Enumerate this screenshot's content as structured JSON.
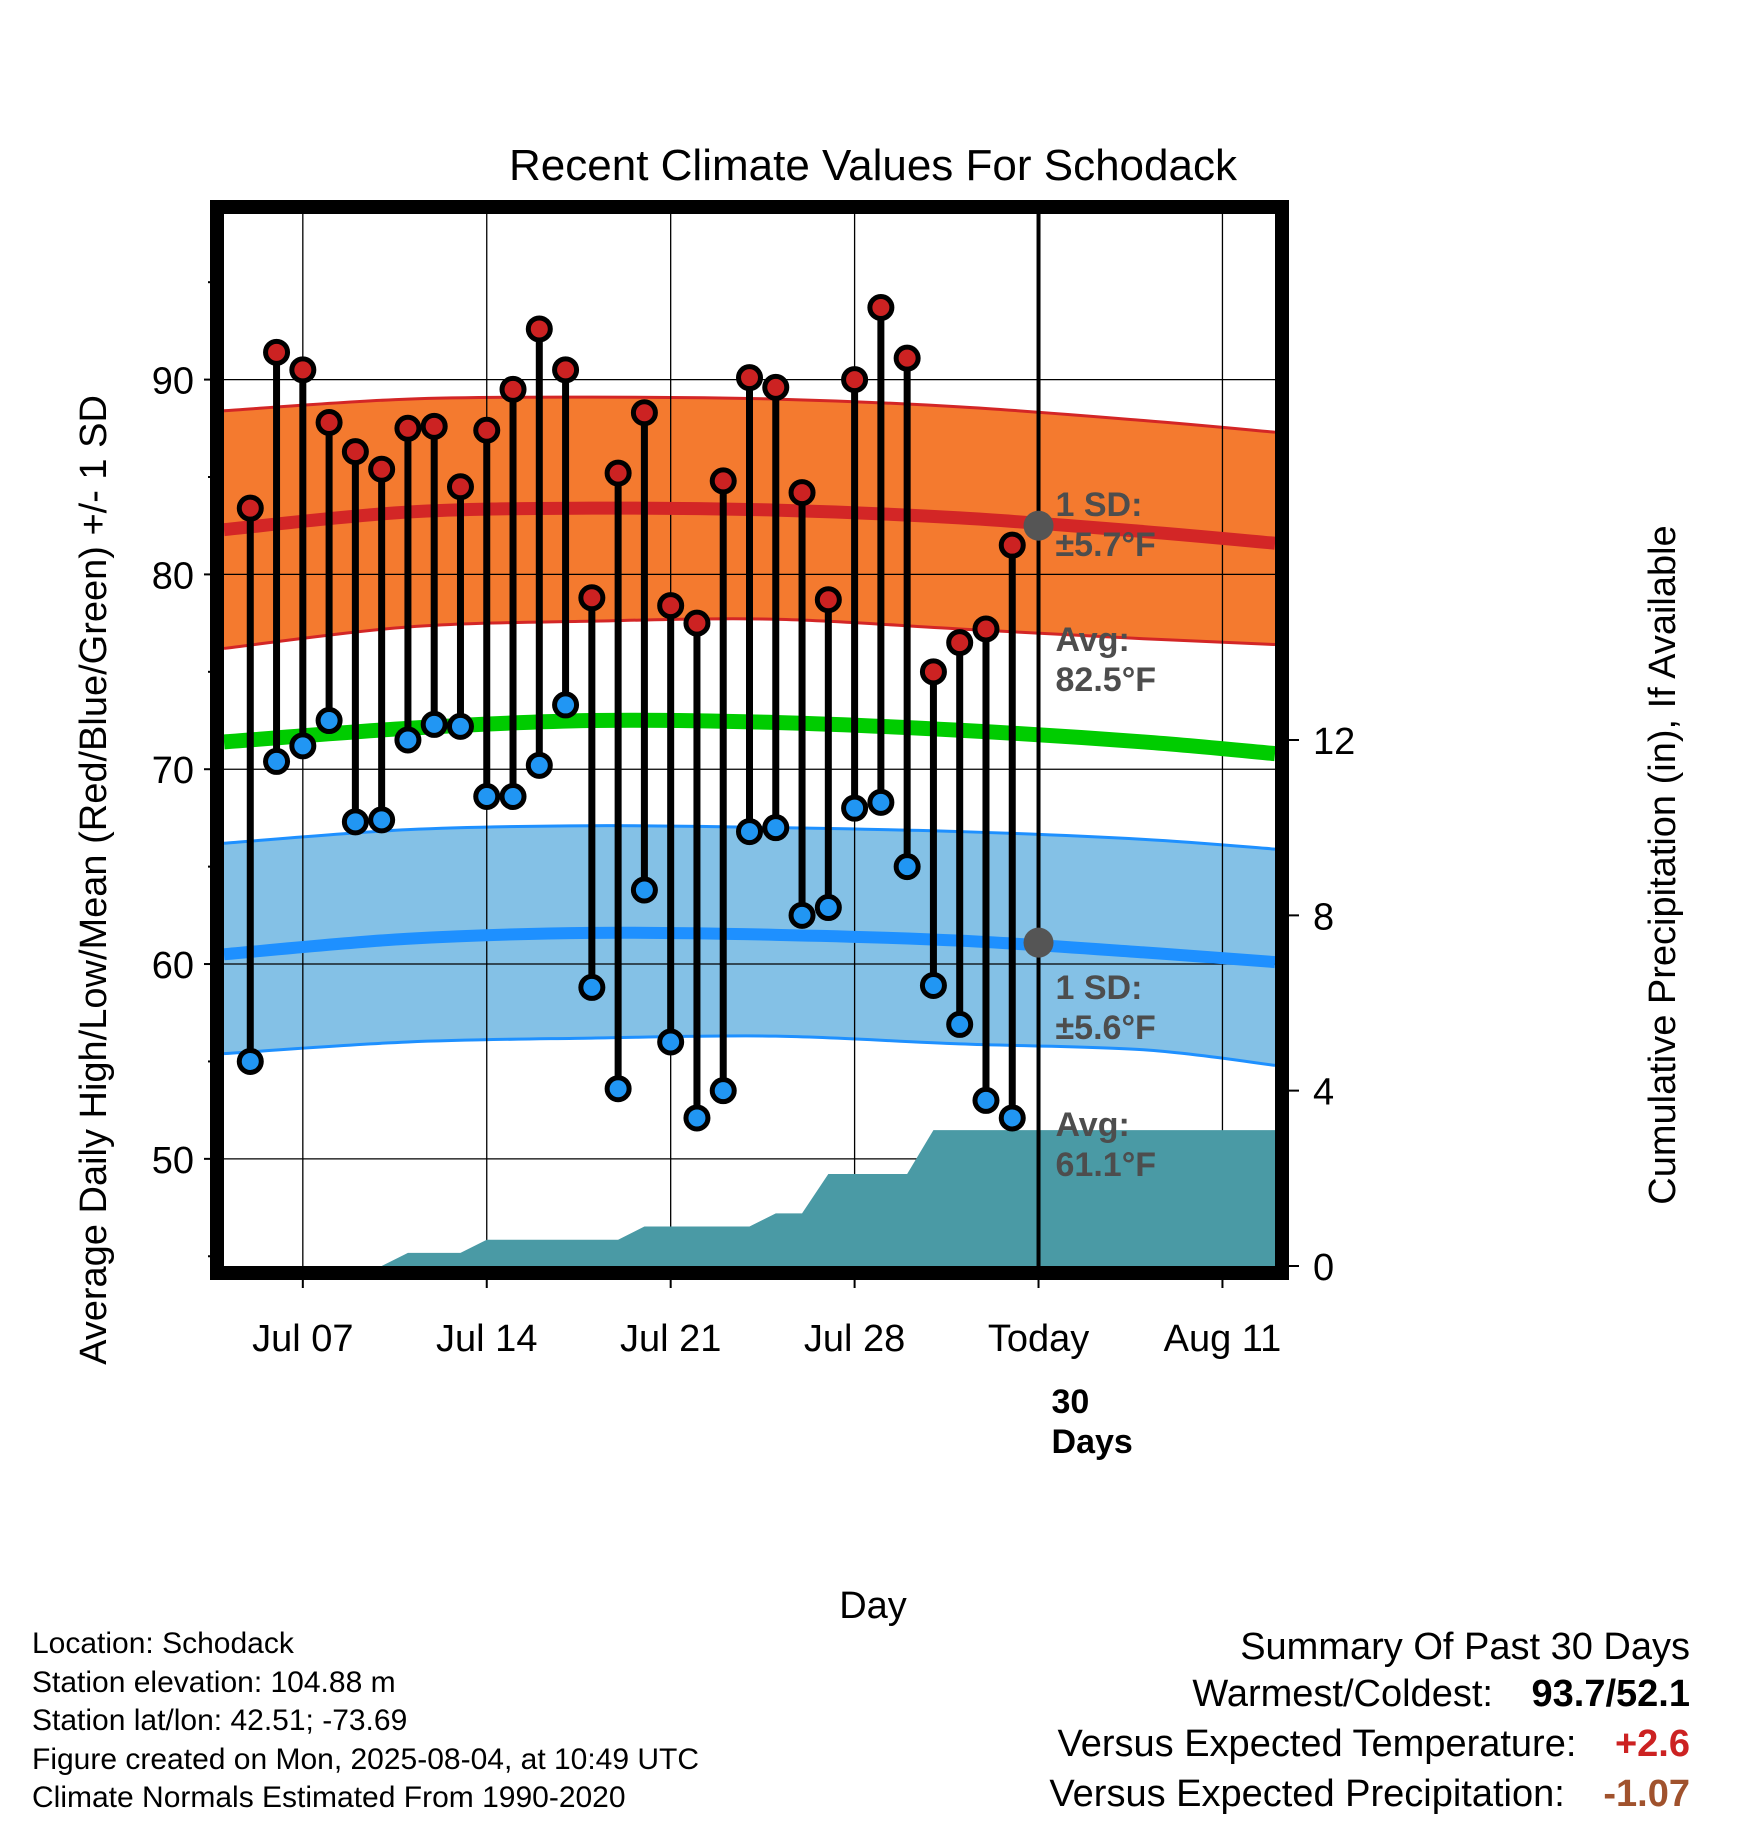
{
  "chart_data": {
    "type": "line",
    "title": "Recent Climate Values For Schodack",
    "xlabel": "Day",
    "ylabel": "Average Daily High/Low/Mean (Red/Blue/Green) +/- 1 SD",
    "ylabel_right": "Cumulative Precipitation (in), If Available",
    "x_ticks": [
      "Jul 07",
      "Jul 14",
      "Jul 21",
      "Jul 28",
      "Today",
      "Aug 11"
    ],
    "x_tick_days": [
      "2025-07-07",
      "2025-07-14",
      "2025-07-21",
      "2025-07-28",
      "2025-08-04",
      "2025-08-11"
    ],
    "xlim": [
      "2025-07-04",
      "2025-08-13"
    ],
    "ylim": [
      44.5,
      98.5
    ],
    "y_ticks": [
      50,
      60,
      70,
      80,
      90
    ],
    "y2lim": [
      0,
      24
    ],
    "y2_ticks": [
      0,
      4,
      8,
      12
    ],
    "grid": true,
    "daily": {
      "dates": [
        "2025-07-05",
        "2025-07-06",
        "2025-07-07",
        "2025-07-08",
        "2025-07-09",
        "2025-07-10",
        "2025-07-11",
        "2025-07-12",
        "2025-07-13",
        "2025-07-14",
        "2025-07-15",
        "2025-07-16",
        "2025-07-17",
        "2025-07-18",
        "2025-07-19",
        "2025-07-20",
        "2025-07-21",
        "2025-07-22",
        "2025-07-23",
        "2025-07-24",
        "2025-07-25",
        "2025-07-26",
        "2025-07-27",
        "2025-07-28",
        "2025-07-29",
        "2025-07-30",
        "2025-07-31",
        "2025-08-01",
        "2025-08-02",
        "2025-08-03"
      ],
      "highs": [
        83.4,
        91.4,
        90.5,
        87.8,
        86.3,
        85.4,
        87.5,
        87.6,
        84.5,
        87.4,
        89.5,
        92.6,
        90.5,
        78.8,
        85.2,
        88.3,
        78.4,
        77.5,
        84.8,
        90.1,
        89.6,
        84.2,
        78.7,
        90.0,
        93.7,
        91.1,
        75.0,
        76.5,
        77.2,
        81.5
      ],
      "lows": [
        55.0,
        70.4,
        71.2,
        72.5,
        67.3,
        67.4,
        71.5,
        72.3,
        72.2,
        68.6,
        68.6,
        70.2,
        73.3,
        58.8,
        53.6,
        63.8,
        56.0,
        52.1,
        53.5,
        66.8,
        67.0,
        62.5,
        62.9,
        68.0,
        68.3,
        65.0,
        58.9,
        56.9,
        53.0,
        52.1
      ]
    },
    "normals": {
      "dates": [
        "2025-07-04",
        "2025-07-11",
        "2025-07-18",
        "2025-07-25",
        "2025-08-01",
        "2025-08-08",
        "2025-08-13"
      ],
      "high_avg": [
        82.3,
        83.2,
        83.4,
        83.3,
        82.9,
        82.2,
        81.6
      ],
      "high_sd_upper": [
        88.4,
        89.0,
        89.1,
        89.0,
        88.6,
        87.9,
        87.3
      ],
      "high_sd_lower": [
        76.2,
        77.3,
        77.6,
        77.7,
        77.2,
        76.7,
        76.4
      ],
      "mean_avg": [
        71.4,
        72.1,
        72.5,
        72.4,
        72.0,
        71.4,
        70.8
      ],
      "low_avg": [
        60.5,
        61.3,
        61.6,
        61.5,
        61.2,
        60.6,
        60.1
      ],
      "low_sd_upper": [
        66.2,
        66.9,
        67.1,
        67.0,
        66.8,
        66.4,
        65.9
      ],
      "low_sd_lower": [
        55.4,
        56.0,
        56.2,
        56.3,
        55.9,
        55.6,
        54.8
      ]
    },
    "precip": {
      "dates": [
        "2025-07-04",
        "2025-07-10",
        "2025-07-11",
        "2025-07-13",
        "2025-07-14",
        "2025-07-19",
        "2025-07-20",
        "2025-07-24",
        "2025-07-25",
        "2025-07-26",
        "2025-07-27",
        "2025-07-30",
        "2025-07-31",
        "2025-08-13"
      ],
      "cumulative": [
        0,
        0,
        0.3,
        0.3,
        0.6,
        0.6,
        0.9,
        0.9,
        1.2,
        1.2,
        2.1,
        2.1,
        3.1,
        3.1
      ]
    },
    "annotations": {
      "high_sd": "1 SD:\n±5.7°F",
      "high_avg": "Avg:\n82.5°F",
      "low_sd": "1 SD:\n±5.6°F",
      "low_avg": "Avg:\n61.1°F",
      "days": "30\nDays",
      "today_high_avg": 82.5,
      "today_low_avg": 61.1
    },
    "colors": {
      "high_band": "#f47a2f",
      "high_line": "#d32626",
      "mean_line": "#00cc00",
      "low_band": "#84c1e6",
      "low_line": "#1e90ff",
      "precip": "#4a9aa5",
      "high_dot": "#cc2222",
      "low_dot": "#2196f3",
      "today_marker": "#555555"
    }
  },
  "footer": {
    "location": "Location: Schodack",
    "elevation": "Station elevation: 104.88 m",
    "latlon": "Station lat/lon: 42.51; -73.69",
    "created": "Figure created on Mon, 2025-08-04, at 10:49 UTC",
    "normals": "Climate Normals Estimated From 1990-2020"
  },
  "summary": {
    "heading": "Summary Of Past 30 Days",
    "warm_cold_label": "Warmest/Coldest:",
    "warm_cold_value": "93.7/52.1",
    "temp_label": "Versus Expected Temperature:",
    "temp_value": "+2.6",
    "precip_label": "Versus Expected Precipitation:",
    "precip_value": "-1.07"
  }
}
